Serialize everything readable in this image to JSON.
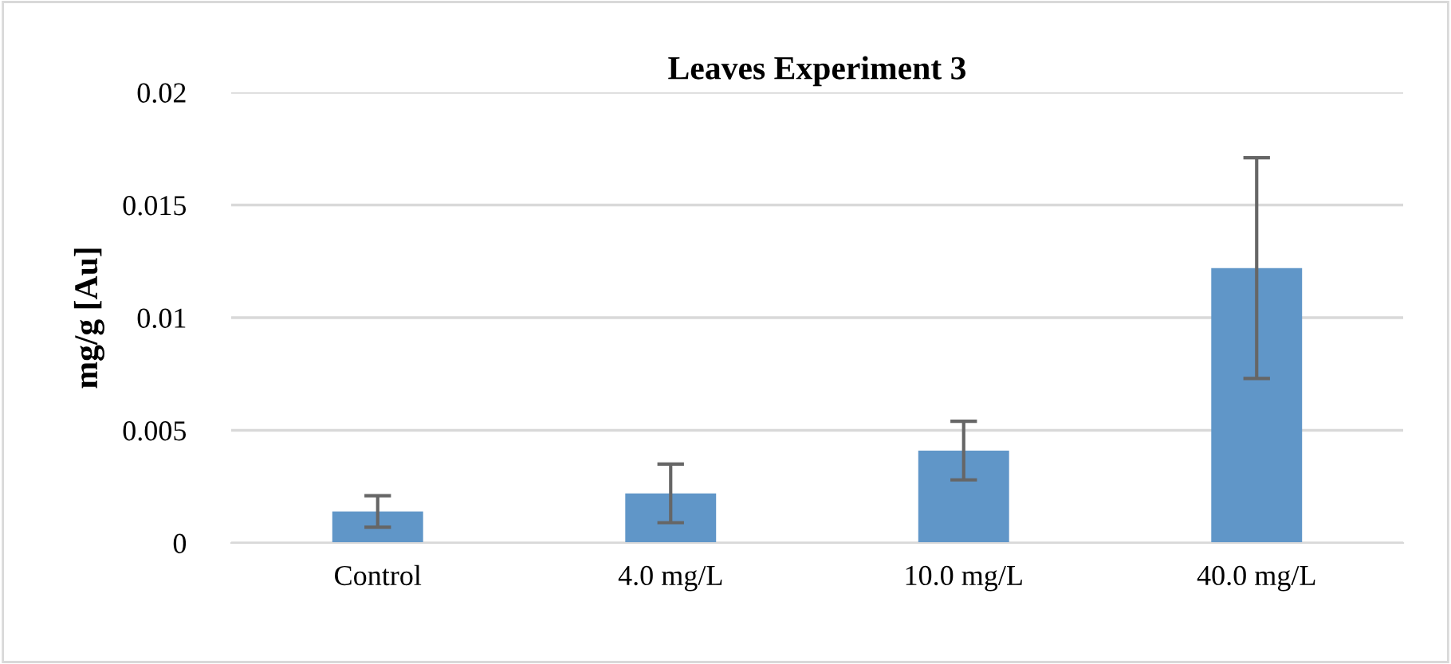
{
  "chart_data": {
    "type": "bar",
    "title": "Leaves Experiment 3",
    "ylabel": "mg/g [Au]",
    "categories": [
      "Control",
      "4.0 mg/L",
      "10.0 mg/L",
      "40.0 mg/L"
    ],
    "values": [
      0.0014,
      0.0022,
      0.0041,
      0.0122
    ],
    "errors": [
      0.0007,
      0.0013,
      0.0013,
      0.0049
    ],
    "color": "#6096c8",
    "ylim": [
      0,
      0.02
    ],
    "yticks": [
      0,
      0.005,
      0.01,
      0.015,
      0.02
    ],
    "grid": "y"
  }
}
